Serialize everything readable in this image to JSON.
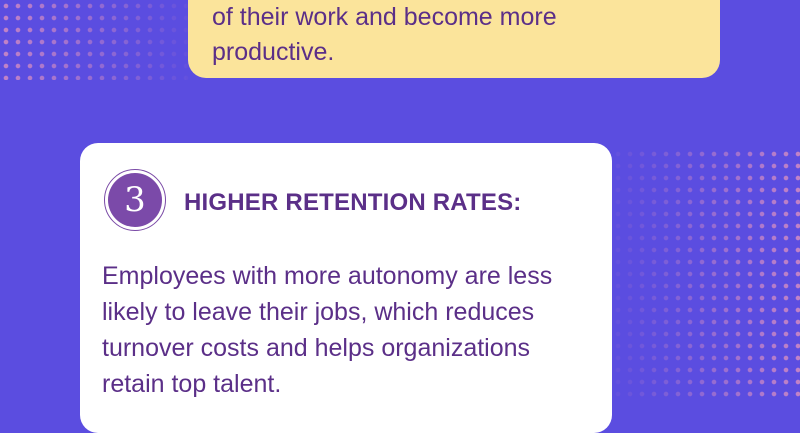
{
  "colors": {
    "background": "#5b4de0",
    "top_card_bg": "#fbe49b",
    "card_bg": "#ffffff",
    "text": "#5b2f88",
    "number_circle": "#7b4aa9",
    "dots": "#e696be"
  },
  "top_card": {
    "text": "of their work and become more\nproductive."
  },
  "item": {
    "number": "3",
    "title": "HIGHER RETENTION RATES:",
    "body": "Employees with more autonomy are less likely to leave their jobs, which reduces turnover costs and helps organizations retain top talent."
  }
}
